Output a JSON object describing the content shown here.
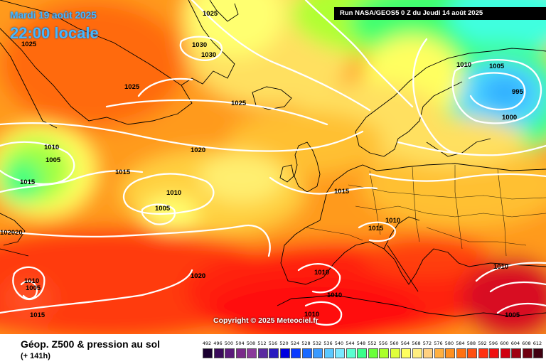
{
  "header": {
    "date": "Mardi 19 août 2025",
    "time": "22:00 locale",
    "run": "Run NASA/GEOS5 0 Z du Jeudi 14 août 2025"
  },
  "copyright": "Copyright © 2025 Meteociel.fr",
  "footer": {
    "title": "Géop. Z500 & pression au sol",
    "lead_time": "(+ 141h)"
  },
  "isobar_labels": [
    "1025",
    "1025",
    "1030",
    "1030",
    "1025",
    "1020",
    "1025",
    "1010",
    "1005",
    "1015",
    "1010",
    "1005",
    "1015",
    "1020",
    "1010",
    "1005",
    "1000",
    "995",
    "1010",
    "1015",
    "1015",
    "1010",
    "1020",
    "1010",
    "1010",
    "1005",
    "1010",
    "1005",
    "1015",
    "1010",
    "102020"
  ],
  "colors": {
    "isobar": "#ffffff",
    "coast": "#000000",
    "title_text": "#44b8ff"
  },
  "scale": {
    "labels": [
      "492",
      "496",
      "500",
      "504",
      "508",
      "512",
      "516",
      "520",
      "524",
      "528",
      "532",
      "536",
      "540",
      "544",
      "548",
      "552",
      "556",
      "560",
      "564",
      "568",
      "572",
      "576",
      "580",
      "584",
      "588",
      "592",
      "596",
      "600",
      "604",
      "608",
      "612"
    ],
    "colors": [
      "#1a0030",
      "#3a0a5a",
      "#5a1a7a",
      "#7a2a8a",
      "#8a3a9a",
      "#5a2aa0",
      "#2a1ac0",
      "#0000e0",
      "#0a3aff",
      "#1a6aff",
      "#3a9aff",
      "#5ac8ff",
      "#7ae8ff",
      "#5affd0",
      "#3aff8a",
      "#6aff3a",
      "#aaff2a",
      "#e0ff3a",
      "#ffff60",
      "#ffee80",
      "#ffd080",
      "#ffb040",
      "#ff9020",
      "#ff7010",
      "#ff5010",
      "#ff3010",
      "#f01010",
      "#d00010",
      "#a00010",
      "#700010",
      "#400010"
    ]
  }
}
